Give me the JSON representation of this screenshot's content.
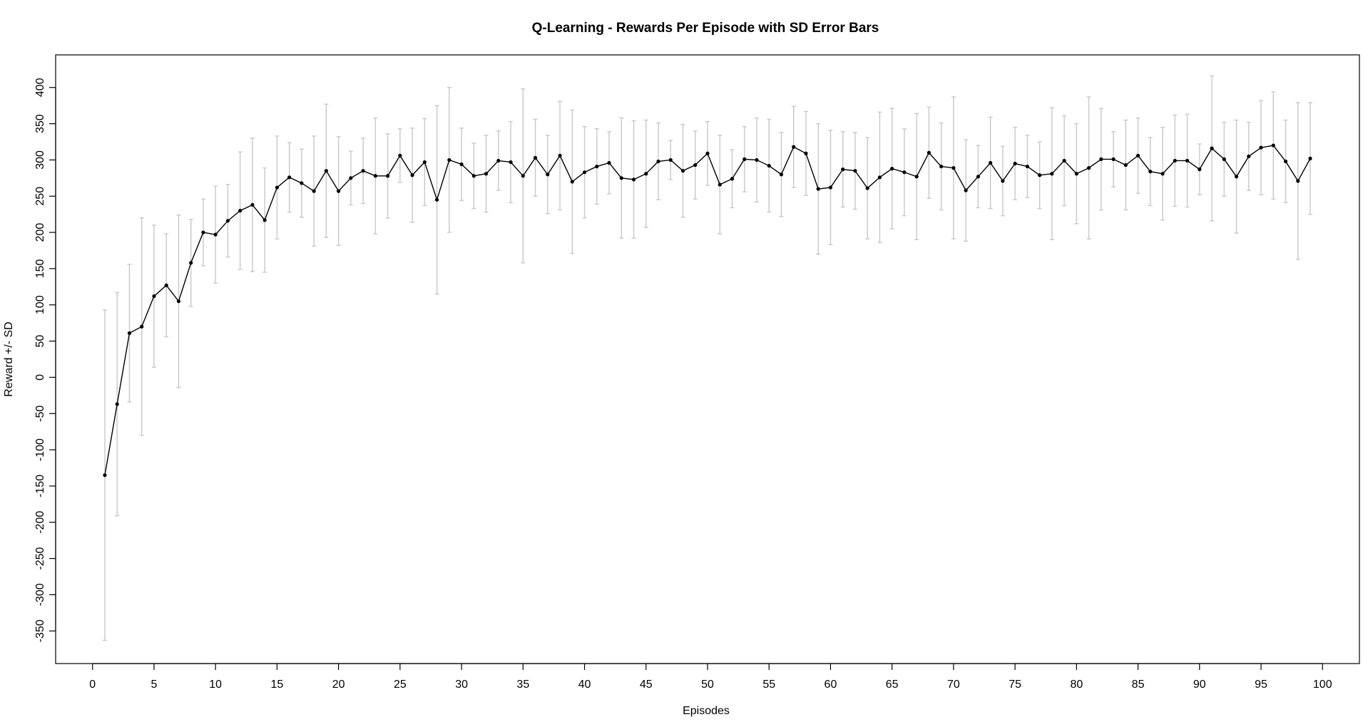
{
  "chart_data": {
    "type": "line",
    "title": "Q-Learning - Rewards Per Episode with SD Error Bars",
    "xlabel": "Episodes",
    "ylabel": "Reward +/- SD",
    "xlim": [
      -3,
      103
    ],
    "ylim": [
      -395,
      445
    ],
    "x_ticks": [
      0,
      5,
      10,
      15,
      20,
      25,
      30,
      35,
      40,
      45,
      50,
      55,
      60,
      65,
      70,
      75,
      80,
      85,
      90,
      95,
      100
    ],
    "y_ticks": [
      -350,
      -300,
      -250,
      -200,
      -150,
      -100,
      -50,
      0,
      50,
      100,
      150,
      200,
      250,
      300,
      350,
      400
    ],
    "grid": false,
    "legend": "none",
    "colors": {
      "line": "#000000",
      "point": "#000000",
      "error_bar": "#c8c8c8"
    },
    "series": [
      {
        "x": [
          1,
          2,
          3,
          4,
          5,
          6,
          7,
          8,
          9,
          10,
          11,
          12,
          13,
          14,
          15,
          16,
          17,
          18,
          19,
          20,
          21,
          22,
          23,
          24,
          25,
          26,
          27,
          28,
          29,
          30,
          31,
          32,
          33,
          34,
          35,
          36,
          37,
          38,
          39,
          40,
          41,
          42,
          43,
          44,
          45,
          46,
          47,
          48,
          49,
          50,
          51,
          52,
          53,
          54,
          55,
          56,
          57,
          58,
          59,
          60,
          61,
          62,
          63,
          64,
          65,
          66,
          67,
          68,
          69,
          70,
          71,
          72,
          73,
          74,
          75,
          76,
          77,
          78,
          79,
          80,
          81,
          82,
          83,
          84,
          85,
          86,
          87,
          88,
          89,
          90,
          91,
          92,
          93,
          94,
          95,
          96,
          97,
          98,
          99
        ],
        "y": [
          -135,
          -37,
          61,
          70,
          112,
          127,
          105,
          158,
          200,
          197,
          216,
          230,
          238,
          217,
          262,
          276,
          268,
          257,
          285,
          257,
          275,
          285,
          278,
          278,
          306,
          279,
          297,
          245,
          300,
          294,
          278,
          281,
          299,
          297,
          278,
          303,
          280,
          306,
          270,
          283,
          291,
          296,
          275,
          273,
          281,
          298,
          300,
          285,
          293,
          309,
          266,
          274,
          301,
          300,
          292,
          280,
          318,
          309,
          260,
          262,
          287,
          285,
          261,
          276,
          288,
          283,
          277,
          310,
          291,
          289,
          258,
          277,
          296,
          271,
          295,
          291,
          279,
          281,
          299,
          281,
          289,
          301,
          301,
          293,
          306,
          284,
          281,
          299,
          299,
          287,
          316,
          301,
          277,
          305,
          317,
          320,
          298,
          271,
          302
        ],
        "sd": [
          228,
          154,
          95,
          150,
          98,
          71,
          119,
          60,
          46,
          67,
          50,
          81,
          92,
          72,
          71,
          48,
          47,
          76,
          92,
          75,
          37,
          45,
          80,
          58,
          37,
          65,
          60,
          130,
          100,
          50,
          45,
          53,
          41,
          56,
          120,
          53,
          54,
          75,
          99,
          63,
          52,
          43,
          83,
          81,
          74,
          53,
          27,
          64,
          47,
          44,
          68,
          40,
          45,
          58,
          64,
          58,
          56,
          58,
          90,
          79,
          52,
          53,
          70,
          90,
          83,
          60,
          87,
          63,
          60,
          98,
          70,
          43,
          63,
          48,
          50,
          43,
          46,
          91,
          62,
          69,
          98,
          70,
          38,
          62,
          52,
          47,
          64,
          63,
          64,
          35,
          100,
          51,
          78,
          47,
          65,
          74,
          57,
          108,
          77
        ]
      }
    ]
  }
}
